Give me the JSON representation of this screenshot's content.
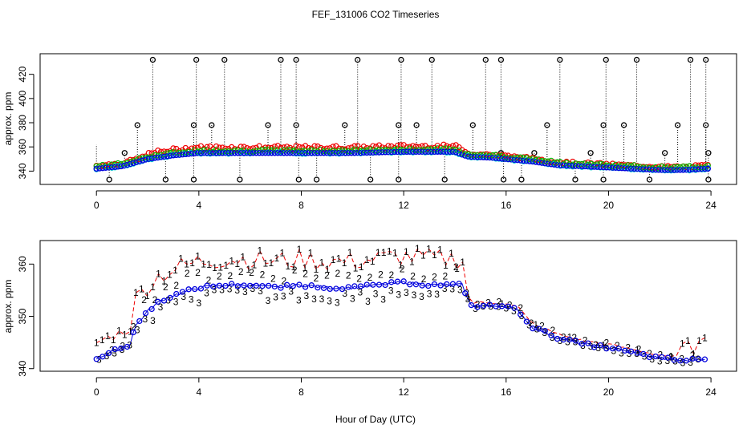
{
  "chart_data": [
    {
      "type": "scatter",
      "title": "FEF_131006  CO2 Timeseries",
      "xlabel": "",
      "ylabel": "approx. ppm",
      "xlim": [
        -2.2,
        25
      ],
      "ylim": [
        329,
        437
      ],
      "xticks": [
        "0",
        "4",
        "8",
        "12",
        "16",
        "20",
        "24"
      ],
      "yticks": [
        "340",
        "360",
        "380",
        "400",
        "420"
      ],
      "series": [
        {
          "name": "cyan markers",
          "color": "#00cccc"
        },
        {
          "name": "red markers",
          "color": "#ee0000"
        },
        {
          "name": "green markers",
          "color": "#00bb00"
        },
        {
          "name": "blue markers",
          "color": "#0000dd"
        },
        {
          "name": "black flagged markers",
          "color": "#000000"
        }
      ],
      "spike_tops": [
        {
          "x": 2.2,
          "y": 432
        },
        {
          "x": 3.9,
          "y": 432
        },
        {
          "x": 5.0,
          "y": 432
        },
        {
          "x": 7.2,
          "y": 432
        },
        {
          "x": 7.8,
          "y": 432
        },
        {
          "x": 10.2,
          "y": 432
        },
        {
          "x": 11.9,
          "y": 432
        },
        {
          "x": 13.1,
          "y": 432
        },
        {
          "x": 15.2,
          "y": 432
        },
        {
          "x": 15.8,
          "y": 432
        },
        {
          "x": 18.1,
          "y": 432
        },
        {
          "x": 19.9,
          "y": 432
        },
        {
          "x": 21.1,
          "y": 432
        },
        {
          "x": 23.2,
          "y": 432
        },
        {
          "x": 23.8,
          "y": 432
        },
        {
          "x": 1.6,
          "y": 378
        },
        {
          "x": 3.8,
          "y": 378
        },
        {
          "x": 4.5,
          "y": 378
        },
        {
          "x": 6.7,
          "y": 378
        },
        {
          "x": 7.8,
          "y": 378
        },
        {
          "x": 9.7,
          "y": 378
        },
        {
          "x": 11.8,
          "y": 378
        },
        {
          "x": 12.5,
          "y": 378
        },
        {
          "x": 14.7,
          "y": 378
        },
        {
          "x": 17.6,
          "y": 378
        },
        {
          "x": 19.8,
          "y": 378
        },
        {
          "x": 20.6,
          "y": 378
        },
        {
          "x": 22.7,
          "y": 378
        },
        {
          "x": 23.8,
          "y": 378
        },
        {
          "x": 1.1,
          "y": 355
        },
        {
          "x": 15.8,
          "y": 355
        },
        {
          "x": 17.1,
          "y": 355
        },
        {
          "x": 19.3,
          "y": 355
        },
        {
          "x": 22.2,
          "y": 355
        },
        {
          "x": 23.9,
          "y": 355
        }
      ],
      "spike_bottoms": [
        {
          "x": 0.5,
          "y": 333
        },
        {
          "x": 2.7,
          "y": 333
        },
        {
          "x": 3.8,
          "y": 333
        },
        {
          "x": 5.6,
          "y": 333
        },
        {
          "x": 7.9,
          "y": 333
        },
        {
          "x": 8.6,
          "y": 333
        },
        {
          "x": 10.7,
          "y": 333
        },
        {
          "x": 11.8,
          "y": 333
        },
        {
          "x": 13.6,
          "y": 333
        },
        {
          "x": 15.9,
          "y": 333
        },
        {
          "x": 16.6,
          "y": 333
        },
        {
          "x": 18.7,
          "y": 333
        },
        {
          "x": 19.8,
          "y": 333
        },
        {
          "x": 21.6,
          "y": 333
        },
        {
          "x": 23.9,
          "y": 333
        }
      ],
      "baseline_profile": [
        [
          0,
          342
        ],
        [
          1,
          344
        ],
        [
          2,
          350
        ],
        [
          3,
          353
        ],
        [
          4,
          355
        ],
        [
          6,
          355
        ],
        [
          8,
          355
        ],
        [
          10,
          355
        ],
        [
          12,
          356
        ],
        [
          14,
          356
        ],
        [
          14.5,
          352
        ],
        [
          15.5,
          351
        ],
        [
          16,
          350
        ],
        [
          17,
          348
        ],
        [
          18,
          345
        ],
        [
          19,
          344
        ],
        [
          20,
          343
        ],
        [
          21,
          342
        ],
        [
          22,
          341
        ],
        [
          23,
          341
        ],
        [
          23.8,
          342
        ]
      ]
    },
    {
      "type": "scatter",
      "title": "",
      "xlabel": "Hour of Day (UTC)",
      "ylabel": "approx. ppm",
      "xlim": [
        -2.2,
        25
      ],
      "ylim": [
        339.5,
        364.5
      ],
      "xticks": [
        "0",
        "4",
        "8",
        "12",
        "16",
        "20",
        "24"
      ],
      "yticks": [
        "340",
        "350",
        "360"
      ],
      "series": [
        {
          "name": "1",
          "label": "1",
          "color": "#ee0000"
        },
        {
          "name": "2",
          "label": "2",
          "color": "#00bb00"
        },
        {
          "name": "3",
          "label": "3",
          "color": "#0000dd"
        },
        {
          "name": "o",
          "label": "o",
          "color": "#0000dd"
        }
      ],
      "profile": [
        [
          0,
          342
        ],
        [
          0.5,
          343
        ],
        [
          1,
          344
        ],
        [
          1.3,
          344.5
        ],
        [
          1.5,
          348
        ],
        [
          2,
          351
        ],
        [
          2.5,
          353
        ],
        [
          3,
          354
        ],
        [
          4,
          355.5
        ],
        [
          5,
          356
        ],
        [
          6,
          356
        ],
        [
          7,
          355.5
        ],
        [
          8,
          356
        ],
        [
          9,
          355.5
        ],
        [
          10,
          355.5
        ],
        [
          11,
          356
        ],
        [
          12,
          356.5
        ],
        [
          13,
          356
        ],
        [
          14,
          356
        ],
        [
          14.3,
          356
        ],
        [
          14.6,
          352
        ],
        [
          15.5,
          352
        ],
        [
          16,
          352
        ],
        [
          16.5,
          351
        ],
        [
          17,
          348
        ],
        [
          18,
          346
        ],
        [
          19,
          344.7
        ],
        [
          20,
          344
        ],
        [
          21,
          343
        ],
        [
          22,
          342
        ],
        [
          23,
          341.5
        ],
        [
          23.8,
          342
        ]
      ]
    }
  ]
}
